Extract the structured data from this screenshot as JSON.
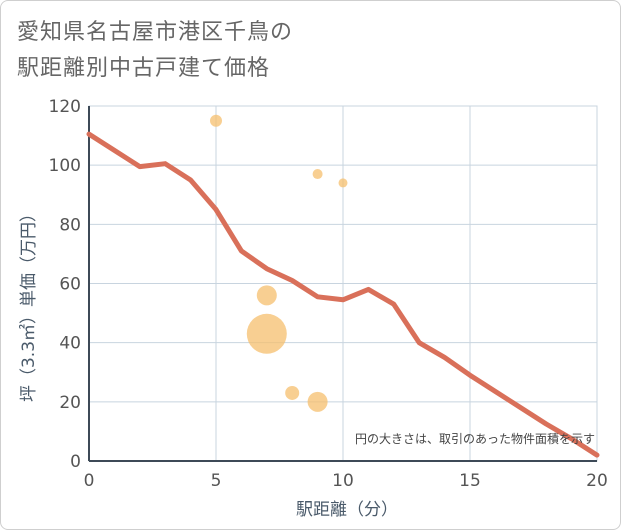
{
  "title_line1": "愛知県名古屋市港区千鳥の",
  "title_line2": "駅距離別中古戸建て価格",
  "chart_data": {
    "type": "scatter",
    "title": "愛知県名古屋市港区千鳥の駅距離別中古戸建て価格",
    "xlabel": "駅距離（分）",
    "ylabel": "坪（3.3㎡）単価（万円）",
    "xlim": [
      0,
      20
    ],
    "ylim": [
      0,
      120
    ],
    "xticks": [
      0,
      5,
      10,
      15,
      20
    ],
    "yticks": [
      0,
      20,
      40,
      60,
      80,
      100,
      120
    ],
    "grid": true,
    "note": "円の大きさは、取引のあった物件面積を示す",
    "points": [
      {
        "x": 5,
        "y": 115,
        "size": 6
      },
      {
        "x": 9,
        "y": 97,
        "size": 5
      },
      {
        "x": 10,
        "y": 94,
        "size": 4.5
      },
      {
        "x": 7,
        "y": 56,
        "size": 10
      },
      {
        "x": 7,
        "y": 43,
        "size": 20
      },
      {
        "x": 8,
        "y": 23,
        "size": 7
      },
      {
        "x": 9,
        "y": 20,
        "size": 10
      }
    ],
    "trend": {
      "x": [
        0,
        1,
        2,
        3,
        4,
        5,
        6,
        7,
        8,
        9,
        10,
        11,
        12,
        13,
        14,
        15,
        16,
        17,
        18,
        19,
        20
      ],
      "y": [
        110.5,
        105,
        99.5,
        100.5,
        95,
        85,
        71,
        65,
        61,
        55.5,
        54.5,
        58,
        53,
        40,
        35,
        29,
        23.5,
        18,
        12.5,
        7.5,
        2
      ]
    },
    "colors": {
      "points": "#f5bf6e",
      "trend": "#d9705a",
      "grid": "#c8d4df",
      "axis": "#3d4a57"
    }
  }
}
